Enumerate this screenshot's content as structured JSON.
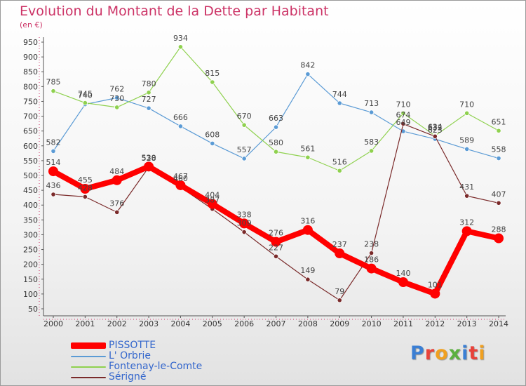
{
  "header": {
    "title": "Evolution du Montant de la Dette par Habitant",
    "subtitle": "(en €)"
  },
  "brand": {
    "text": "Proxiti",
    "letter_colors": [
      "#3b7fd4",
      "#e8423a",
      "#f0a020",
      "#5bb040",
      "#3b7fd4",
      "#e8423a",
      "#f0a020"
    ]
  },
  "chart_data": {
    "type": "line",
    "title": "Evolution du Montant de la Dette par Habitant",
    "subtitle": "(en €)",
    "x": [
      "2000",
      "2001",
      "2002",
      "2003",
      "2004",
      "2005",
      "2006",
      "2007",
      "2008",
      "2009",
      "2010",
      "2011",
      "2012",
      "2013",
      "2014"
    ],
    "ylim": [
      50,
      950
    ],
    "yticks": [
      50,
      100,
      150,
      200,
      250,
      300,
      350,
      400,
      450,
      500,
      550,
      600,
      650,
      700,
      750,
      800,
      850,
      900,
      950
    ],
    "grid": false,
    "legend_position": "bottom-left",
    "series": [
      {
        "name": "L' Orbrie",
        "color": "#5b9bd5",
        "values": [
          582,
          740,
          762,
          727,
          666,
          608,
          557,
          663,
          842,
          744,
          713,
          649,
          623,
          589,
          558
        ],
        "labels": [
          "582",
          "740",
          "762",
          "727",
          "666",
          "608",
          "557",
          "663",
          "842",
          "744",
          "713",
          "649",
          "623",
          "589",
          "558"
        ]
      },
      {
        "name": "Fontenay-le-Comte",
        "color": "#8fd14f",
        "values": [
          785,
          745,
          730,
          780,
          934,
          815,
          670,
          580,
          561,
          516,
          583,
          710,
          634,
          710,
          651
        ],
        "labels": [
          "785",
          "745",
          "730",
          "780",
          "934",
          "815",
          "670",
          "580",
          "561",
          "516",
          "583",
          "710",
          "634",
          "710",
          "651"
        ]
      },
      {
        "name": "Sérigné",
        "color": "#7a2a2a",
        "values": [
          436,
          428,
          376,
          528,
          460,
          387,
          309,
          227,
          149,
          79,
          238,
          674,
          632,
          431,
          407
        ],
        "labels": [
          "436",
          "428",
          "376",
          "528",
          "460",
          "387",
          "309",
          "227",
          "149",
          "79",
          "238",
          "674",
          "632",
          "431",
          "407"
        ]
      },
      {
        "name": "PISSOTTE",
        "color": "#ff0000",
        "values": [
          514,
          455,
          484,
          530,
          467,
          404,
          338,
          276,
          316,
          237,
          186,
          140,
          101,
          312,
          288
        ],
        "labels": [
          "514",
          "455",
          "484",
          "530",
          "467",
          "404",
          "338",
          "276",
          "316",
          "237",
          "186",
          "140",
          "101",
          "312",
          "288"
        ]
      }
    ]
  }
}
